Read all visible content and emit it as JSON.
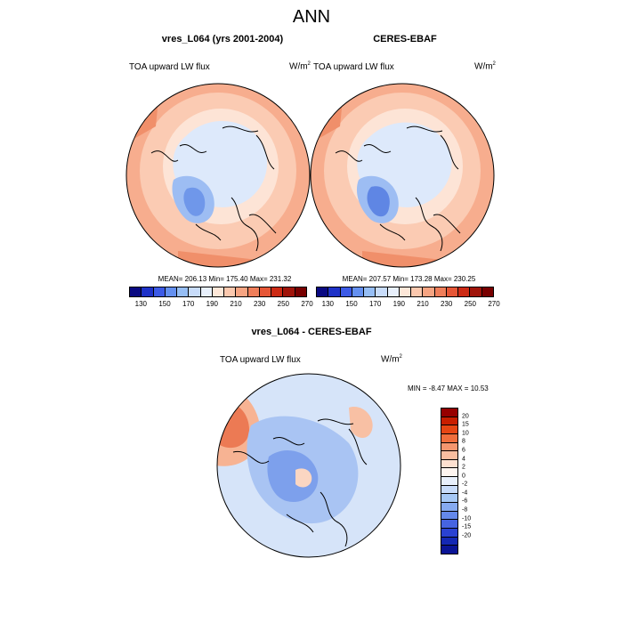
{
  "figure": {
    "main_title": "ANN"
  },
  "panels": [
    {
      "title": "vres_L064 (yrs 2001-2004)",
      "variable": "TOA upward LW flux",
      "units_base": "W/m",
      "units_exp": "2",
      "stats": "MEAN= 206.13  Min= 175.40  Max= 231.32"
    },
    {
      "title": "CERES-EBAF",
      "variable": "TOA upward LW flux",
      "units_base": "W/m",
      "units_exp": "2",
      "stats": "MEAN= 207.57  Min= 173.28  Max= 230.25"
    },
    {
      "title": "vres_L064 - CERES-EBAF",
      "variable": "TOA upward LW flux",
      "units_base": "W/m",
      "units_exp": "2",
      "stats": "MIN =  -8.47 MAX =  10.53"
    }
  ],
  "colorbar_main": {
    "colors": [
      "#0a0a82",
      "#1e32c8",
      "#3c5ae6",
      "#6490f0",
      "#96bef5",
      "#c8dcfa",
      "#e8f0fc",
      "#fde7d8",
      "#fbc8ae",
      "#f6a482",
      "#ef7e5a",
      "#e65636",
      "#cc2a14",
      "#a0140a",
      "#780000"
    ],
    "tick_labels": [
      "130",
      "150",
      "170",
      "190",
      "210",
      "230",
      "250",
      "270"
    ]
  },
  "colorbar_diff": {
    "colors": [
      "#960000",
      "#c81e00",
      "#e64614",
      "#f06e3c",
      "#f5966e",
      "#f9bea0",
      "#fde0d0",
      "#fdf5f0",
      "#e8f0fc",
      "#c8dcfa",
      "#a6c8f5",
      "#86aaf0",
      "#6488eb",
      "#4664e1",
      "#2a42d2",
      "#1428b4",
      "#0a1496"
    ],
    "tick_labels": [
      "20",
      "15",
      "10",
      "8",
      "6",
      "4",
      "2",
      "0",
      "-2",
      "-4",
      "-6",
      "-8",
      "-10",
      "-15",
      "-20"
    ]
  }
}
